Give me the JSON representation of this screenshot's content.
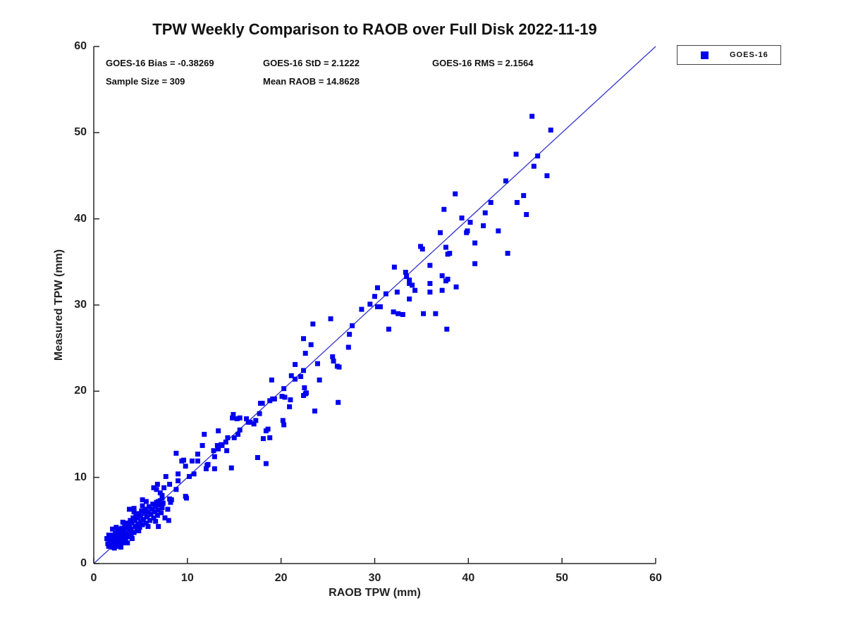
{
  "title": "TPW Weekly Comparison to RAOB over Full Disk 2022-11-19",
  "stats": {
    "bias": "GOES-16 Bias = -0.38269",
    "std": "GOES-16 StD = 2.1222",
    "rms": "GOES-16 RMS = 2.1564",
    "sample_size": "Sample Size = 309",
    "mean_raob": "Mean RAOB = 14.8628"
  },
  "legend": {
    "label": "GOES-16",
    "marker_color": "#0000ee"
  },
  "colors": {
    "marker": "#0000ee",
    "reference_line": "#3333cc",
    "axis": "#262626",
    "text": "#111111"
  },
  "chart_data": {
    "type": "scatter",
    "title": "TPW Weekly Comparison to RAOB over Full Disk 2022-11-19",
    "xlabel": "RAOB TPW (mm)",
    "ylabel": "Measured TPW (mm)",
    "xlim": [
      0,
      60
    ],
    "ylim": [
      0,
      60
    ],
    "xticks": [
      0,
      10,
      20,
      30,
      40,
      50,
      60
    ],
    "yticks": [
      0,
      10,
      20,
      30,
      40,
      50,
      60
    ],
    "grid": false,
    "legend_position": "outside-top-right",
    "reference_line": {
      "from": [
        0,
        0
      ],
      "to": [
        60,
        60
      ],
      "color": "#3333cc"
    },
    "annotations": [
      "GOES-16 Bias = -0.38269",
      "GOES-16 StD = 2.1222",
      "GOES-16 RMS = 2.1564",
      "Sample Size = 309",
      "Mean RAOB = 14.8628"
    ],
    "series": [
      {
        "name": "GOES-16",
        "marker": "square",
        "color": "#0000ee",
        "points": [
          [
            1.4,
            2.9
          ],
          [
            1.5,
            2.3
          ],
          [
            1.6,
            2.0
          ],
          [
            1.6,
            3.3
          ],
          [
            1.7,
            2.7
          ],
          [
            1.8,
            2.2
          ],
          [
            1.9,
            3.0
          ],
          [
            2.0,
            1.9
          ],
          [
            2.0,
            2.6
          ],
          [
            2.0,
            4.0
          ],
          [
            2.1,
            3.3
          ],
          [
            2.2,
            1.8
          ],
          [
            2.2,
            2.3
          ],
          [
            2.3,
            2.9
          ],
          [
            2.3,
            3.6
          ],
          [
            2.4,
            2.0
          ],
          [
            2.4,
            4.2
          ],
          [
            2.5,
            2.6
          ],
          [
            2.5,
            3.2
          ],
          [
            2.6,
            4.0
          ],
          [
            2.7,
            2.3
          ],
          [
            2.7,
            3.1
          ],
          [
            2.8,
            3.7
          ],
          [
            2.9,
            1.9
          ],
          [
            2.9,
            2.7
          ],
          [
            3.0,
            3.4
          ],
          [
            3.0,
            4.1
          ],
          [
            3.1,
            2.4
          ],
          [
            3.1,
            4.8
          ],
          [
            3.2,
            3.1
          ],
          [
            3.2,
            3.8
          ],
          [
            3.3,
            4.4
          ],
          [
            3.4,
            2.7
          ],
          [
            3.5,
            3.5
          ],
          [
            3.5,
            4.1
          ],
          [
            3.6,
            2.4
          ],
          [
            3.6,
            4.7
          ],
          [
            3.7,
            3.1
          ],
          [
            3.8,
            3.7
          ],
          [
            3.8,
            4.4
          ],
          [
            3.9,
            5.0
          ],
          [
            4.0,
            3.3
          ],
          [
            4.0,
            4.0
          ],
          [
            4.1,
            2.9
          ],
          [
            4.1,
            4.7
          ],
          [
            4.2,
            5.3
          ],
          [
            4.3,
            3.6
          ],
          [
            4.3,
            6.0
          ],
          [
            4.4,
            4.3
          ],
          [
            4.4,
            5.0
          ],
          [
            4.5,
            5.6
          ],
          [
            4.6,
            3.9
          ],
          [
            4.7,
            4.6
          ],
          [
            4.7,
            5.3
          ],
          [
            4.8,
            3.8
          ],
          [
            4.8,
            5.8
          ],
          [
            4.9,
            4.2
          ],
          [
            5.0,
            4.9
          ],
          [
            5.0,
            5.5
          ],
          [
            5.1,
            6.1
          ],
          [
            5.2,
            4.5
          ],
          [
            5.2,
            6.7
          ],
          [
            5.3,
            5.1
          ],
          [
            5.4,
            5.8
          ],
          [
            5.5,
            6.3
          ],
          [
            5.6,
            4.7
          ],
          [
            5.7,
            5.4
          ],
          [
            5.8,
            4.3
          ],
          [
            5.8,
            6.0
          ],
          [
            5.9,
            6.6
          ],
          [
            6.0,
            5.0
          ],
          [
            6.1,
            5.7
          ],
          [
            6.2,
            6.3
          ],
          [
            6.3,
            6.9
          ],
          [
            6.4,
            5.3
          ],
          [
            6.5,
            6.0
          ],
          [
            6.6,
            4.9
          ],
          [
            6.6,
            6.6
          ],
          [
            6.7,
            7.1
          ],
          [
            6.8,
            5.6
          ],
          [
            6.9,
            6.2
          ],
          [
            7.0,
            6.8
          ],
          [
            7.1,
            7.3
          ],
          [
            7.2,
            5.9
          ],
          [
            7.3,
            6.5
          ],
          [
            7.4,
            7.0
          ],
          [
            7.6,
            5.3
          ],
          [
            8.0,
            5.0
          ],
          [
            6.9,
            4.3
          ],
          [
            7.9,
            6.3
          ],
          [
            8.3,
            7.4
          ],
          [
            4.3,
            6.4
          ],
          [
            3.8,
            6.3
          ],
          [
            5.6,
            7.2
          ],
          [
            5.2,
            7.4
          ],
          [
            6.9,
            7.2
          ],
          [
            7.3,
            7.9
          ],
          [
            6.4,
            8.8
          ],
          [
            6.7,
            8.6
          ],
          [
            8.2,
            7.1
          ],
          [
            9.8,
            7.8
          ],
          [
            9.9,
            7.6
          ],
          [
            8.1,
            7.5
          ],
          [
            7.3,
            7.6
          ],
          [
            7.5,
            8.8
          ],
          [
            7.1,
            8.2
          ],
          [
            8.8,
            8.6
          ],
          [
            8.1,
            9.2
          ],
          [
            9.0,
            9.6
          ],
          [
            9.0,
            10.4
          ],
          [
            10.2,
            10.1
          ],
          [
            7.7,
            10.1
          ],
          [
            6.8,
            9.2
          ],
          [
            8.8,
            12.8
          ],
          [
            9.4,
            11.9
          ],
          [
            9.6,
            12.0
          ],
          [
            9.8,
            11.3
          ],
          [
            10.5,
            11.9
          ],
          [
            10.7,
            10.4
          ],
          [
            11.1,
            12.7
          ],
          [
            11.1,
            11.9
          ],
          [
            11.6,
            13.7
          ],
          [
            11.8,
            15.0
          ],
          [
            12.0,
            11.0
          ],
          [
            12.1,
            11.4
          ],
          [
            12.2,
            11.5
          ],
          [
            12.8,
            13.1
          ],
          [
            12.9,
            12.4
          ],
          [
            12.9,
            11.0
          ],
          [
            13.2,
            13.7
          ],
          [
            13.3,
            13.3
          ],
          [
            13.3,
            15.4
          ],
          [
            13.6,
            13.8
          ],
          [
            13.7,
            13.7
          ],
          [
            14.1,
            14.1
          ],
          [
            14.2,
            13.1
          ],
          [
            14.3,
            14.6
          ],
          [
            14.7,
            11.1
          ],
          [
            14.8,
            16.9
          ],
          [
            14.9,
            17.3
          ],
          [
            15.0,
            14.6
          ],
          [
            15.3,
            16.8
          ],
          [
            15.4,
            15.0
          ],
          [
            15.6,
            16.9
          ],
          [
            15.6,
            15.5
          ],
          [
            16.3,
            16.8
          ],
          [
            16.5,
            16.4
          ],
          [
            16.7,
            16.4
          ],
          [
            17.1,
            16.2
          ],
          [
            17.3,
            16.6
          ],
          [
            17.5,
            12.3
          ],
          [
            17.7,
            17.4
          ],
          [
            17.8,
            18.6
          ],
          [
            18.0,
            18.6
          ],
          [
            18.1,
            14.5
          ],
          [
            18.4,
            15.4
          ],
          [
            18.4,
            11.6
          ],
          [
            18.6,
            15.6
          ],
          [
            18.8,
            14.6
          ],
          [
            18.8,
            18.9
          ],
          [
            19.0,
            21.3
          ],
          [
            19.1,
            19.1
          ],
          [
            19.3,
            19.1
          ],
          [
            20.1,
            19.4
          ],
          [
            20.2,
            16.6
          ],
          [
            20.3,
            16.1
          ],
          [
            20.3,
            20.3
          ],
          [
            20.4,
            19.3
          ],
          [
            20.9,
            18.2
          ],
          [
            21.0,
            19.0
          ],
          [
            21.1,
            21.8
          ],
          [
            21.5,
            23.1
          ],
          [
            21.5,
            21.4
          ],
          [
            22.1,
            21.7
          ],
          [
            22.4,
            26.1
          ],
          [
            22.4,
            22.4
          ],
          [
            22.4,
            19.5
          ],
          [
            22.6,
            24.4
          ],
          [
            22.6,
            19.7
          ],
          [
            22.7,
            19.8
          ],
          [
            23.2,
            25.4
          ],
          [
            23.4,
            27.8
          ],
          [
            23.6,
            17.7
          ],
          [
            23.9,
            23.2
          ],
          [
            24.1,
            21.3
          ],
          [
            25.3,
            28.4
          ],
          [
            25.5,
            24.0
          ],
          [
            25.6,
            23.5
          ],
          [
            26.0,
            22.9
          ],
          [
            26.1,
            18.7
          ],
          [
            26.2,
            22.8
          ],
          [
            27.2,
            25.1
          ],
          [
            27.3,
            26.6
          ],
          [
            27.6,
            27.6
          ],
          [
            22.5,
            20.4
          ],
          [
            28.6,
            29.5
          ],
          [
            29.5,
            30.1
          ],
          [
            30.0,
            31.0
          ],
          [
            30.3,
            32.0
          ],
          [
            30.3,
            29.8
          ],
          [
            30.6,
            29.8
          ],
          [
            31.2,
            31.3
          ],
          [
            31.5,
            27.2
          ],
          [
            32.0,
            29.2
          ],
          [
            32.1,
            34.4
          ],
          [
            32.4,
            31.5
          ],
          [
            32.5,
            29.0
          ],
          [
            33.0,
            28.9
          ],
          [
            33.3,
            33.8
          ],
          [
            33.4,
            33.3
          ],
          [
            33.7,
            32.9
          ],
          [
            33.7,
            30.7
          ],
          [
            33.7,
            32.5
          ],
          [
            34.0,
            32.3
          ],
          [
            34.3,
            31.7
          ],
          [
            34.9,
            36.8
          ],
          [
            35.1,
            36.5
          ],
          [
            35.2,
            29.0
          ],
          [
            35.9,
            34.6
          ],
          [
            35.9,
            32.5
          ],
          [
            35.9,
            31.5
          ],
          [
            36.5,
            29.0
          ],
          [
            37.0,
            38.4
          ],
          [
            37.2,
            33.4
          ],
          [
            37.2,
            31.7
          ],
          [
            37.4,
            41.1
          ],
          [
            37.6,
            36.7
          ],
          [
            37.6,
            32.8
          ],
          [
            37.7,
            27.2
          ],
          [
            37.8,
            35.9
          ],
          [
            37.8,
            33.0
          ],
          [
            38.0,
            36.0
          ],
          [
            38.6,
            42.9
          ],
          [
            38.7,
            32.1
          ],
          [
            39.3,
            40.1
          ],
          [
            39.8,
            38.4
          ],
          [
            39.9,
            38.6
          ],
          [
            40.2,
            39.6
          ],
          [
            40.7,
            37.2
          ],
          [
            40.7,
            34.8
          ],
          [
            41.6,
            39.2
          ],
          [
            41.8,
            40.7
          ],
          [
            42.4,
            41.9
          ],
          [
            43.2,
            38.6
          ],
          [
            44.0,
            44.4
          ],
          [
            44.2,
            36.0
          ],
          [
            45.1,
            47.5
          ],
          [
            45.2,
            41.9
          ],
          [
            45.9,
            42.7
          ],
          [
            46.2,
            40.5
          ],
          [
            46.8,
            51.9
          ],
          [
            47.0,
            46.1
          ],
          [
            47.4,
            47.3
          ],
          [
            48.4,
            45.0
          ],
          [
            48.8,
            50.3
          ]
        ]
      }
    ]
  }
}
